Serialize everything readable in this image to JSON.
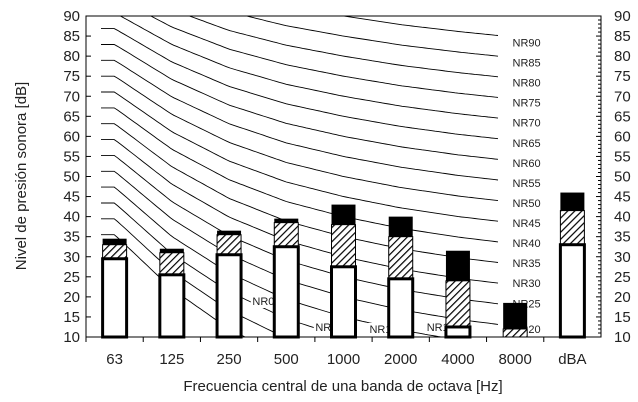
{
  "chart_data": {
    "type": "bar",
    "xlabel": "Frecuencia central de una banda de octava [Hz]",
    "ylabel": "Nivel de presión sonora [dB]",
    "ylim": [
      10,
      90
    ],
    "yticks": [
      10,
      15,
      20,
      25,
      30,
      35,
      40,
      45,
      50,
      55,
      60,
      65,
      70,
      75,
      80,
      85,
      90
    ],
    "categories": [
      "63",
      "125",
      "250",
      "500",
      "1000",
      "2000",
      "4000",
      "8000",
      "dBA"
    ],
    "series": [
      {
        "values": [
          29.5,
          25.5,
          30.5,
          32.5,
          27.5,
          24.5,
          12.5,
          10,
          33
        ]
      },
      {
        "values": [
          33,
          31,
          35.5,
          38.5,
          38,
          35,
          24,
          12,
          41.5
        ]
      },
      {
        "values": [
          34.5,
          32,
          36.5,
          39.5,
          43,
          40,
          31.5,
          18.5,
          46
        ]
      }
    ],
    "nr_curves": [
      {
        "label": "NR90",
        "level": 90
      },
      {
        "label": "NR85",
        "level": 85
      },
      {
        "label": "NR80",
        "level": 80
      },
      {
        "label": "NR75",
        "level": 75
      },
      {
        "label": "NR70",
        "level": 70
      },
      {
        "label": "NR65",
        "level": 65
      },
      {
        "label": "NR60",
        "level": 60
      },
      {
        "label": "NR55",
        "level": 55
      },
      {
        "label": "NR50",
        "level": 50
      },
      {
        "label": "NR45",
        "level": 45
      },
      {
        "label": "NR40",
        "level": 40
      },
      {
        "label": "NR35",
        "level": 35
      },
      {
        "label": "NR30",
        "level": 30
      },
      {
        "label": "NR25",
        "level": 25
      },
      {
        "label": "NR20",
        "level": 20
      },
      {
        "label": "NR15",
        "level": 15
      },
      {
        "label": "NR10",
        "level": 10
      },
      {
        "label": "NR5",
        "level": 5
      },
      {
        "label": "NR0",
        "level": 0
      }
    ],
    "grid": false,
    "legend": "none",
    "colors": {
      "bar_top": "#000000",
      "hatch": "#000000",
      "bar_bottom": "#ffffff",
      "curves": "#000000"
    }
  }
}
